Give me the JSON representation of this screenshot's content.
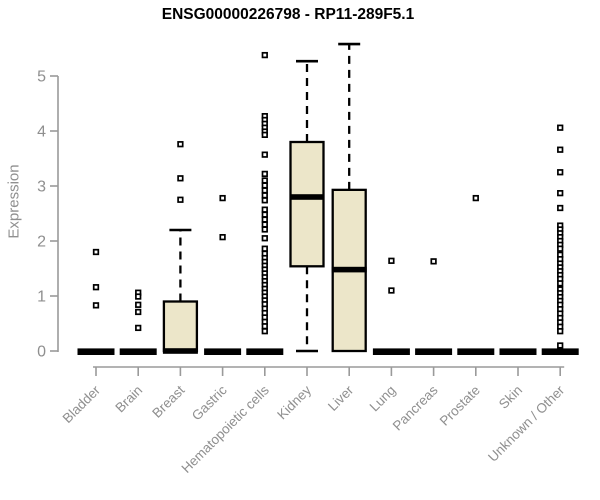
{
  "title": "ENSG00000226798 - RP11-289F5.1",
  "chart_data": {
    "type": "box",
    "title": "ENSG00000226798 - RP11-289F5.1",
    "xlabel": "",
    "ylabel": "Expression",
    "ylim": [
      0,
      5.7
    ],
    "yticks": [
      0,
      1,
      2,
      3,
      4,
      5
    ],
    "grid": false,
    "legend": "none",
    "colors": {
      "box_fill": "#ece6c9",
      "box_stroke": "#000000",
      "axis": "#9a9a9a",
      "tick_label": "#8f8f8f",
      "title": "#000000"
    },
    "categories": [
      "Bladder",
      "Brain",
      "Breast",
      "Gastric",
      "Hematopoietic cells",
      "Kidney",
      "Liver",
      "Lung",
      "Pancreas",
      "Prostate",
      "Skin",
      "Unknown / Other"
    ],
    "boxes": [
      {
        "category": "Bladder",
        "whisker_low": 0,
        "q1": 0,
        "median": 0,
        "q3": 0,
        "whisker_high": 0,
        "outliers": [
          1.8,
          1.16,
          0.83
        ]
      },
      {
        "category": "Brain",
        "whisker_low": 0,
        "q1": 0,
        "median": 0,
        "q3": 0,
        "whisker_high": 0,
        "outliers": [
          1.06,
          0.99,
          0.84,
          0.71,
          0.42
        ]
      },
      {
        "category": "Breast",
        "whisker_low": 0,
        "q1": 0,
        "median": 0,
        "q3": 0.9,
        "whisker_high": 2.2,
        "outliers": [
          3.76,
          3.14,
          2.75
        ]
      },
      {
        "category": "Gastric",
        "whisker_low": 0,
        "q1": 0,
        "median": 0,
        "q3": 0,
        "whisker_high": 0,
        "outliers": [
          2.78,
          2.07
        ]
      },
      {
        "category": "Hematopoietic cells",
        "whisker_low": 0,
        "q1": 0,
        "median": 0,
        "q3": 0,
        "whisker_high": 0,
        "outliers": [
          5.38,
          4.27,
          4.2,
          4.13,
          4.06,
          3.99,
          3.93,
          3.57,
          3.22,
          3.1,
          3.01,
          2.92,
          2.83,
          2.74,
          2.57,
          2.48,
          2.39,
          2.3,
          2.21,
          2.05,
          1.86,
          1.77,
          1.69,
          1.62,
          1.55,
          1.48,
          1.41,
          1.34,
          1.27,
          1.2,
          1.13,
          1.06,
          0.99,
          0.92,
          0.85,
          0.77,
          0.69,
          0.61,
          0.53,
          0.45,
          0.36
        ]
      },
      {
        "category": "Kidney",
        "whisker_low": 0,
        "q1": 1.54,
        "median": 2.8,
        "q3": 3.8,
        "whisker_high": 5.27,
        "outliers": []
      },
      {
        "category": "Liver",
        "whisker_low": 0,
        "q1": 0,
        "median": 1.48,
        "q3": 2.93,
        "whisker_high": 5.58,
        "outliers": []
      },
      {
        "category": "Lung",
        "whisker_low": 0,
        "q1": 0,
        "median": 0,
        "q3": 0,
        "whisker_high": 0,
        "outliers": [
          1.64,
          1.1
        ]
      },
      {
        "category": "Pancreas",
        "whisker_low": 0,
        "q1": 0,
        "median": 0,
        "q3": 0,
        "whisker_high": 0,
        "outliers": [
          1.63
        ]
      },
      {
        "category": "Prostate",
        "whisker_low": 0,
        "q1": 0,
        "median": 0,
        "q3": 0,
        "whisker_high": 0,
        "outliers": [
          2.78
        ]
      },
      {
        "category": "Skin",
        "whisker_low": 0,
        "q1": 0,
        "median": 0,
        "q3": 0,
        "whisker_high": 0,
        "outliers": []
      },
      {
        "category": "Unknown / Other",
        "whisker_low": 0,
        "q1": 0,
        "median": 0,
        "q3": 0,
        "whisker_high": 0,
        "outliers": [
          4.06,
          3.66,
          3.25,
          2.87,
          2.6,
          2.28,
          2.21,
          2.14,
          2.07,
          2.0,
          1.93,
          1.86,
          1.75,
          1.67,
          1.59,
          1.52,
          1.45,
          1.38,
          1.31,
          1.23,
          1.12,
          1.05,
          0.98,
          0.91,
          0.84,
          0.76,
          0.68,
          0.6,
          0.52,
          0.44,
          0.36,
          0.1
        ]
      }
    ]
  }
}
